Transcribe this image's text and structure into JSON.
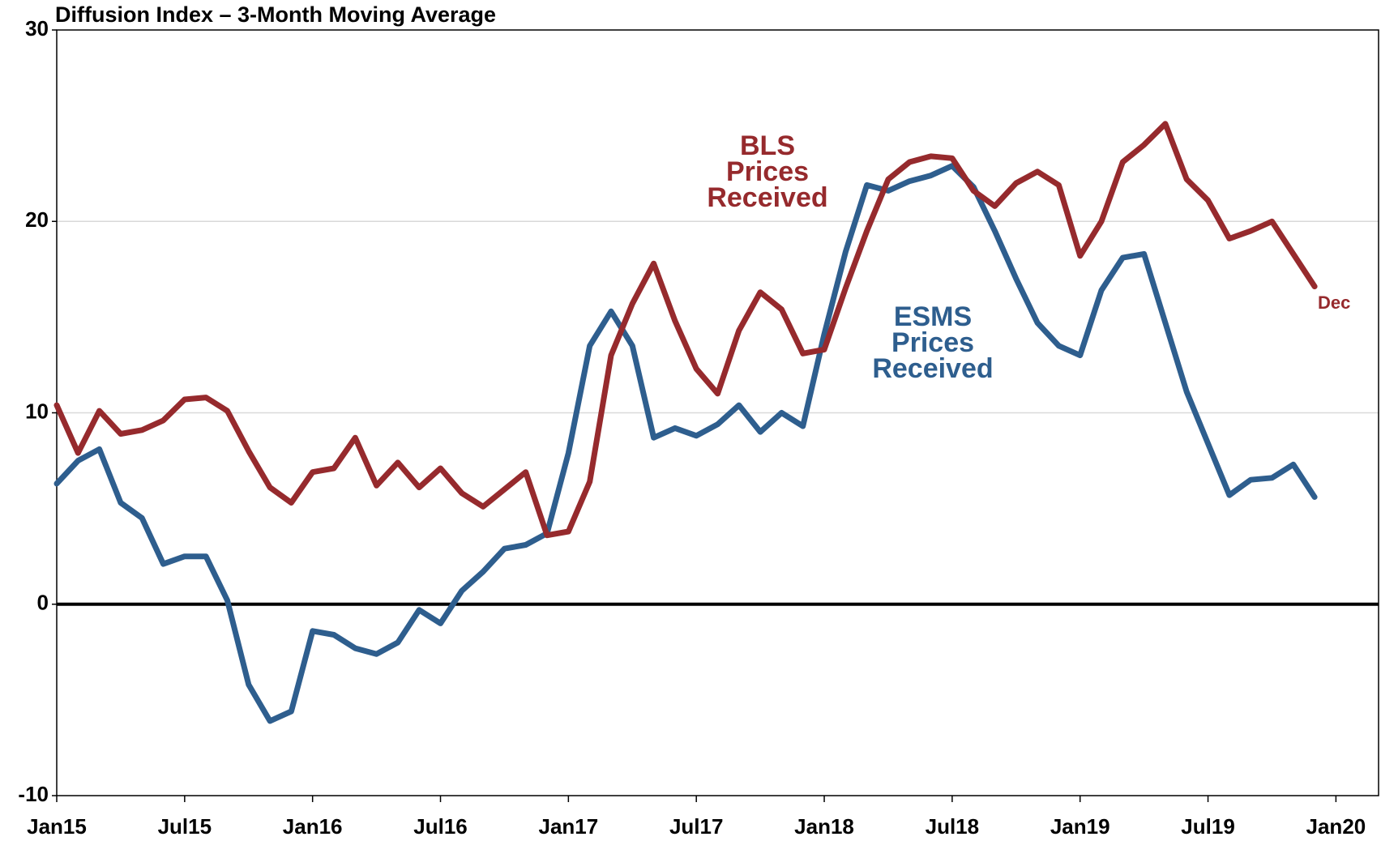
{
  "chart_data": {
    "type": "line",
    "title": "Diffusion Index – 3-Month Moving Average",
    "x": [
      "2015-01",
      "2015-02",
      "2015-03",
      "2015-04",
      "2015-05",
      "2015-06",
      "2015-07",
      "2015-08",
      "2015-09",
      "2015-10",
      "2015-11",
      "2015-12",
      "2016-01",
      "2016-02",
      "2016-03",
      "2016-04",
      "2016-05",
      "2016-06",
      "2016-07",
      "2016-08",
      "2016-09",
      "2016-10",
      "2016-11",
      "2016-12",
      "2017-01",
      "2017-02",
      "2017-03",
      "2017-04",
      "2017-05",
      "2017-06",
      "2017-07",
      "2017-08",
      "2017-09",
      "2017-10",
      "2017-11",
      "2017-12",
      "2018-01",
      "2018-02",
      "2018-03",
      "2018-04",
      "2018-05",
      "2018-06",
      "2018-07",
      "2018-08",
      "2018-09",
      "2018-10",
      "2018-11",
      "2018-12",
      "2019-01",
      "2019-02",
      "2019-03",
      "2019-04",
      "2019-05",
      "2019-06",
      "2019-07",
      "2019-08",
      "2019-09",
      "2019-10",
      "2019-11",
      "2019-12"
    ],
    "series": [
      {
        "name": "ESMS Prices Received",
        "color": "#2e5e8e",
        "values": [
          6.3,
          7.5,
          8.1,
          5.3,
          4.5,
          2.1,
          2.5,
          2.5,
          0.2,
          -4.2,
          -6.1,
          -5.6,
          -1.4,
          -1.6,
          -2.3,
          -2.6,
          -2.0,
          -0.3,
          -1.0,
          0.7,
          1.7,
          2.9,
          3.1,
          3.7,
          7.9,
          13.5,
          15.3,
          13.5,
          8.7,
          9.2,
          8.8,
          9.4,
          10.4,
          9.0,
          10.0,
          9.3,
          14.1,
          18.4,
          21.9,
          21.6,
          22.1,
          22.4,
          22.9,
          21.8,
          19.5,
          17.0,
          14.7,
          13.5,
          13.0,
          16.4,
          18.1,
          18.3,
          14.7,
          11.1,
          8.4,
          5.7,
          6.5,
          6.6,
          7.3,
          5.6
        ]
      },
      {
        "name": "BLS Prices Received",
        "color": "#962a2d",
        "values": [
          10.4,
          7.9,
          10.1,
          8.9,
          9.1,
          9.6,
          10.7,
          10.8,
          10.1,
          8.0,
          6.1,
          5.3,
          6.9,
          7.1,
          8.7,
          6.2,
          7.4,
          6.1,
          7.1,
          5.8,
          5.1,
          6.0,
          6.9,
          3.6,
          3.8,
          6.4,
          13.0,
          15.7,
          17.8,
          14.8,
          12.3,
          11.0,
          14.3,
          16.3,
          15.4,
          13.1,
          13.3,
          16.5,
          19.5,
          22.2,
          23.1,
          23.4,
          23.3,
          21.6,
          20.8,
          22.0,
          22.6,
          21.9,
          18.2,
          20.0,
          23.1,
          24.0,
          25.1,
          22.2,
          21.1,
          19.1,
          19.5,
          20.0,
          18.3,
          16.6
        ]
      }
    ],
    "annotations": [
      {
        "lines": [
          "BLS",
          "Prices",
          "Received"
        ],
        "color": "#962a2d"
      },
      {
        "lines": [
          "ESMS",
          "Prices",
          "Received"
        ],
        "color": "#2e5e8e"
      },
      {
        "lines": [
          "Dec"
        ],
        "color": "#962a2d"
      }
    ],
    "xlim": [
      "2015-01",
      "2020-03"
    ],
    "xticks": [
      {
        "value": "2015-01",
        "label": "Jan15"
      },
      {
        "value": "2015-07",
        "label": "Jul15"
      },
      {
        "value": "2016-01",
        "label": "Jan16"
      },
      {
        "value": "2016-07",
        "label": "Jul16"
      },
      {
        "value": "2017-01",
        "label": "Jan17"
      },
      {
        "value": "2017-07",
        "label": "Jul17"
      },
      {
        "value": "2018-01",
        "label": "Jan18"
      },
      {
        "value": "2018-07",
        "label": "Jul18"
      },
      {
        "value": "2019-01",
        "label": "Jan19"
      },
      {
        "value": "2019-07",
        "label": "Jul19"
      },
      {
        "value": "2020-01",
        "label": "Jan20"
      }
    ],
    "ylim": [
      -10,
      30
    ],
    "yticks": [
      -10,
      0,
      10,
      20,
      30
    ],
    "grid": true
  }
}
